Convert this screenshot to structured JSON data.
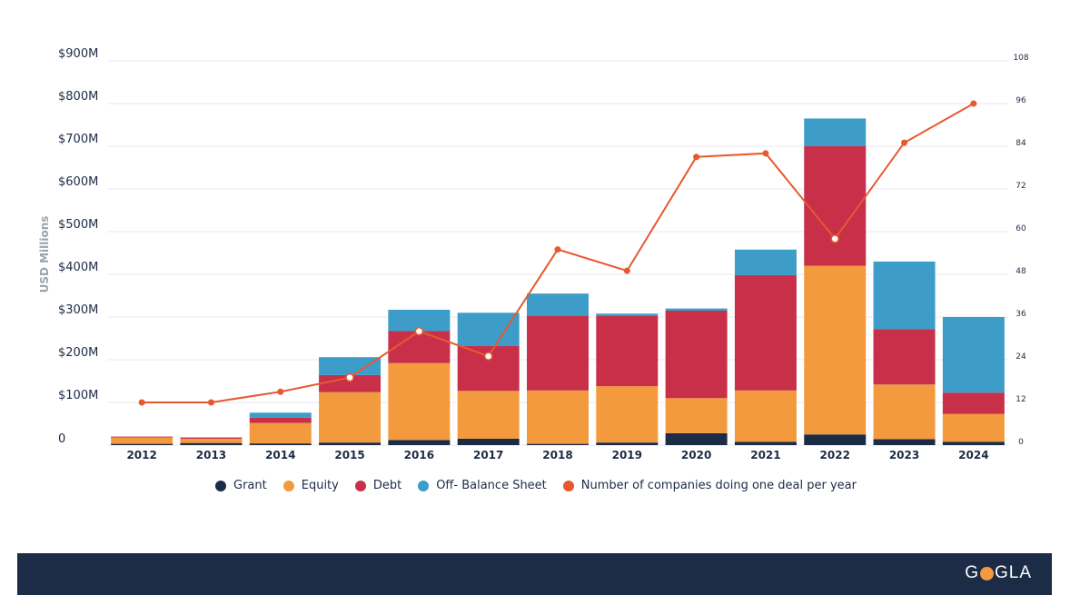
{
  "chart_data": {
    "type": "bar",
    "stacked": true,
    "categories": [
      "2012",
      "2013",
      "2014",
      "2015",
      "2016",
      "2017",
      "2018",
      "2019",
      "2020",
      "2021",
      "2022",
      "2023",
      "2024"
    ],
    "series": [
      {
        "name": "Grant",
        "color": "#1c2b46",
        "values": [
          3,
          5,
          4,
          6,
          12,
          15,
          3,
          6,
          28,
          8,
          25,
          14,
          8
        ]
      },
      {
        "name": "Equity",
        "color": "#f39a3f",
        "values": [
          15,
          10,
          48,
          118,
          180,
          112,
          125,
          132,
          82,
          120,
          395,
          128,
          65
        ]
      },
      {
        "name": "Debt",
        "color": "#c8304a",
        "values": [
          2,
          3,
          12,
          40,
          75,
          105,
          175,
          165,
          205,
          270,
          280,
          130,
          50
        ]
      },
      {
        "name": "Off- Balance Sheet",
        "color": "#3d9dc8",
        "values": [
          0,
          0,
          12,
          42,
          50,
          78,
          52,
          5,
          5,
          60,
          65,
          158,
          177
        ]
      }
    ],
    "line": {
      "name": "Number of companies doing one deal per year",
      "color": "#e8582f",
      "values": [
        12,
        12,
        15,
        19,
        32,
        25,
        55,
        49,
        81,
        82,
        58,
        85,
        96
      ],
      "hollow_points": [
        3,
        4,
        5,
        10
      ]
    },
    "left_axis": {
      "label": "USD Millions",
      "ticks": [
        "0",
        "$100M",
        "$200M",
        "$300M",
        "$400M",
        "$500M",
        "$600M",
        "$700M",
        "$800M",
        "$900M"
      ],
      "ylim": [
        0,
        900
      ]
    },
    "right_axis": {
      "ticks": [
        "0",
        "12",
        "24",
        "36",
        "48",
        "60",
        "72",
        "84",
        "96",
        "108"
      ],
      "ylim": [
        0,
        108
      ]
    },
    "legend_placement": "bottom-center"
  },
  "brand": {
    "logo_left": "G",
    "logo_right": "GLA",
    "logo_o_color": "#f39a3f",
    "footer_color": "#1c2b46"
  }
}
